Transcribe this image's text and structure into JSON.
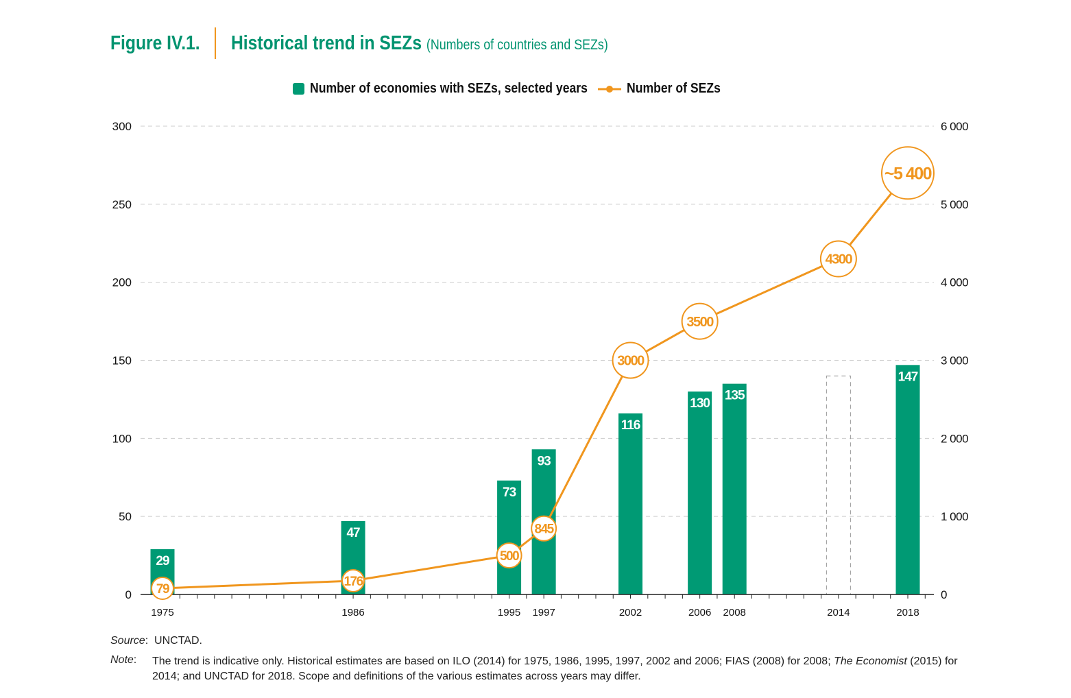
{
  "title": {
    "figure": "Figure IV.1.",
    "main": "Historical trend in SEZs",
    "sub": "(Numbers of countries and SEZs)"
  },
  "colors": {
    "bar": "#009a74",
    "line": "#f0961e",
    "title": "#00936f"
  },
  "chart_data": {
    "type": "bar+line",
    "legend": [
      "Number of economies with SEZs, selected years",
      "Number of SEZs"
    ],
    "legend_position": "top-center",
    "x_range": [
      1975,
      2018
    ],
    "x_tick_labels": [
      "1975",
      "1986",
      "1995",
      "1997",
      "2002",
      "2006",
      "2008",
      "2014",
      "2018"
    ],
    "left_axis": {
      "ylim": [
        0,
        300
      ],
      "ticks": [
        "0",
        "50",
        "100",
        "150",
        "200",
        "250",
        "300"
      ]
    },
    "right_axis": {
      "ylim": [
        0,
        6000
      ],
      "ticks": [
        "0",
        "1 000",
        "2 000",
        "3 000",
        "4 000",
        "5 000",
        "6 000"
      ]
    },
    "bars": [
      {
        "year": 1975,
        "value": 29,
        "label": "29"
      },
      {
        "year": 1986,
        "value": 47,
        "label": "47"
      },
      {
        "year": 1995,
        "value": 73,
        "label": "73"
      },
      {
        "year": 1997,
        "value": 93,
        "label": "93"
      },
      {
        "year": 2002,
        "value": 116,
        "label": "116"
      },
      {
        "year": 2006,
        "value": 130,
        "label": "130"
      },
      {
        "year": 2008,
        "value": 135,
        "label": "135"
      },
      {
        "year": 2014,
        "value": 140,
        "label": "",
        "dashed": true
      },
      {
        "year": 2018,
        "value": 147,
        "label": "147"
      }
    ],
    "line": [
      {
        "year": 1975,
        "value": 79,
        "label": "79"
      },
      {
        "year": 1986,
        "value": 176,
        "label": "176"
      },
      {
        "year": 1995,
        "value": 500,
        "label": "500"
      },
      {
        "year": 1997,
        "value": 845,
        "label": "845"
      },
      {
        "year": 2002,
        "value": 3000,
        "label": "3000"
      },
      {
        "year": 2006,
        "value": 3500,
        "label": "3500"
      },
      {
        "year": 2014,
        "value": 4300,
        "label": "4300"
      },
      {
        "year": 2018,
        "value": 5400,
        "label": "~5 400"
      }
    ],
    "grid": true
  },
  "source": {
    "label": "Source",
    "text": "UNCTAD."
  },
  "note": {
    "label": "Note",
    "text1": "The trend is indicative only. Historical estimates are based on ILO (2014) for 1975, 1986, 1995, 1997, 2002 and 2006; FIAS (2008) for 2008; ",
    "italic": "The Economist",
    "text2": " (2015) for",
    "line2": "2014; and UNCTAD for 2018. Scope and definitions of the various estimates across years may differ."
  }
}
